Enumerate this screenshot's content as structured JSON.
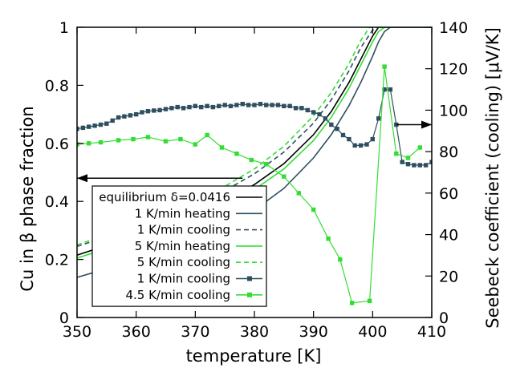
{
  "chart_data": {
    "type": "line",
    "xlabel": "temperature [K]",
    "ylabel_left": "Cu in β phase fraction",
    "ylabel_right": "Seebeck coefficient (cooling) [μV/K]",
    "xlim": [
      350,
      410
    ],
    "ylim_left": [
      0,
      1
    ],
    "ylim_right": [
      0,
      140
    ],
    "x_ticks": [
      350,
      360,
      370,
      380,
      390,
      400,
      410
    ],
    "y_left_ticks": [
      0,
      0.2,
      0.4,
      0.6,
      0.8,
      1
    ],
    "y_right_ticks": [
      0,
      20,
      40,
      60,
      80,
      100,
      120,
      140
    ],
    "grid": false,
    "legend_position": "bottom-left",
    "series": [
      {
        "name": "equilibrium δ=0.0416",
        "axis": "left",
        "color": "#000000",
        "style": "solid",
        "x": [
          350,
          355,
          360,
          365,
          370,
          375,
          380,
          385,
          390,
          393,
          396,
          398,
          400,
          401,
          402,
          410
        ],
        "y": [
          0.215,
          0.248,
          0.282,
          0.318,
          0.357,
          0.402,
          0.458,
          0.53,
          0.63,
          0.71,
          0.81,
          0.89,
          0.97,
          1.0,
          1.0,
          1.0
        ]
      },
      {
        "name": "1 K/min heating",
        "axis": "left",
        "color": "#2f4f5f",
        "style": "solid",
        "x": [
          350,
          355,
          360,
          365,
          370,
          375,
          380,
          385,
          390,
          393,
          396,
          398,
          400,
          401,
          402,
          403,
          405,
          410
        ],
        "y": [
          0.138,
          0.168,
          0.2,
          0.235,
          0.273,
          0.315,
          0.37,
          0.445,
          0.55,
          0.63,
          0.73,
          0.81,
          0.9,
          0.95,
          0.985,
          1.0,
          1.0,
          1.0
        ]
      },
      {
        "name": "1 K/min cooling",
        "axis": "left",
        "color": "#2f4f5f",
        "style": "dashed",
        "x": [
          350,
          355,
          360,
          365,
          370,
          375,
          380,
          385,
          390,
          393,
          396,
          398,
          400,
          401,
          410
        ],
        "y": [
          0.245,
          0.278,
          0.313,
          0.35,
          0.39,
          0.437,
          0.495,
          0.57,
          0.67,
          0.75,
          0.85,
          0.93,
          0.99,
          1.0,
          1.0
        ]
      },
      {
        "name": "5 K/min heating",
        "axis": "left",
        "color": "#33dd33",
        "style": "solid",
        "x": [
          350,
          355,
          360,
          365,
          370,
          375,
          380,
          385,
          390,
          393,
          396,
          398,
          400,
          401,
          402,
          410
        ],
        "y": [
          0.205,
          0.237,
          0.27,
          0.306,
          0.344,
          0.388,
          0.441,
          0.512,
          0.61,
          0.69,
          0.79,
          0.87,
          0.95,
          0.985,
          1.0,
          1.0
        ]
      },
      {
        "name": "5 K/min cooling",
        "axis": "left",
        "color": "#33dd33",
        "style": "dashed",
        "x": [
          350,
          355,
          360,
          365,
          370,
          375,
          380,
          385,
          390,
          393,
          396,
          398,
          399.5,
          410
        ],
        "y": [
          0.25,
          0.285,
          0.322,
          0.361,
          0.403,
          0.452,
          0.512,
          0.59,
          0.695,
          0.775,
          0.875,
          0.955,
          1.0,
          1.0
        ]
      },
      {
        "name": "1 K/min cooling",
        "axis": "right",
        "color": "#2f4f5f",
        "style": "solid",
        "marker": "square",
        "x": [
          350,
          351,
          352,
          353,
          354,
          355,
          356,
          357,
          358,
          359,
          360,
          361,
          362,
          363,
          364,
          365,
          366,
          367,
          368,
          369,
          370,
          371,
          372,
          373,
          374,
          375,
          376,
          377,
          378,
          379,
          380,
          381,
          382,
          383,
          384,
          385,
          386,
          387,
          388,
          389,
          390,
          391,
          392,
          393,
          394,
          395,
          396,
          397,
          398,
          399,
          400,
          401,
          402,
          403,
          404,
          405,
          406,
          407,
          408,
          409,
          410
        ],
        "y": [
          91,
          91.5,
          92,
          92.5,
          93,
          93.5,
          95,
          96.5,
          97,
          97.5,
          98,
          99,
          99.5,
          99.8,
          100,
          100.5,
          101,
          101.5,
          101,
          101.5,
          102,
          101.5,
          102,
          101.5,
          102,
          102.5,
          102,
          102.5,
          103,
          102.5,
          102.5,
          103,
          102.5,
          102.5,
          102.5,
          102,
          102,
          101,
          101,
          100,
          99,
          98,
          96,
          93,
          91,
          88,
          86,
          83,
          83,
          83.5,
          86,
          96,
          110,
          110,
          93,
          75,
          74,
          73.5,
          73.5,
          73.5,
          75
        ]
      },
      {
        "name": "4.5 K/min cooling",
        "axis": "right",
        "color": "#33dd33",
        "style": "solid",
        "marker": "square",
        "x": [
          350,
          352,
          354,
          357,
          359.5,
          362,
          365,
          367.5,
          370,
          372,
          374.5,
          377,
          379.5,
          382,
          385,
          387.5,
          390,
          392.5,
          394.5,
          396.5,
          399.5,
          402,
          404,
          406,
          408
        ],
        "y": [
          83.5,
          84,
          84.5,
          85.5,
          86,
          87,
          85,
          86,
          83.5,
          88,
          82,
          79,
          76,
          74,
          68,
          60,
          52,
          38,
          28,
          7,
          8,
          121,
          79,
          77,
          82
        ]
      }
    ],
    "annotations": [
      {
        "type": "arrow",
        "axis": "left",
        "direction": "left",
        "x_from": 378,
        "x_to": 350,
        "y": 0.48
      },
      {
        "type": "arrow",
        "axis": "right",
        "direction": "right",
        "x_from": 404,
        "x_to": 410,
        "y": 93
      }
    ]
  }
}
